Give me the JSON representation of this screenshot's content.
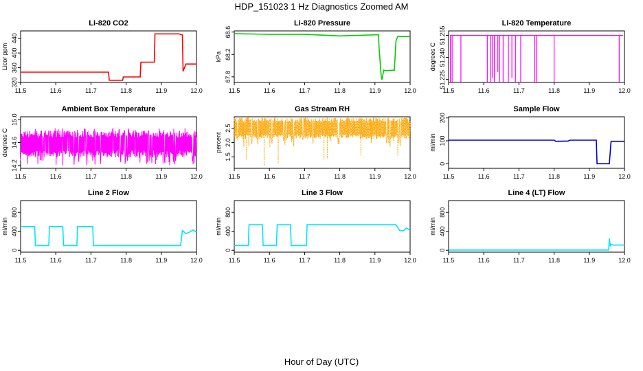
{
  "figure": {
    "title": "HDP_151023  1 Hz Diagnostics Zoomed AM",
    "xlabel": "Hour of Day (UTC)"
  },
  "chart_data": [
    {
      "id": "co2",
      "type": "line",
      "title": "Li-820 CO2",
      "ylabel": "Licor ppm",
      "color": "#ff0000",
      "xlim": [
        11.5,
        12.0
      ],
      "xticks": [
        "11.5",
        "11.6",
        "11.7",
        "11.8",
        "11.9",
        "12.0"
      ],
      "ylim": [
        320,
        460
      ],
      "yticks": [
        320,
        360,
        400,
        440
      ],
      "x": [
        11.5,
        11.7,
        11.75,
        11.752,
        11.79,
        11.792,
        11.84,
        11.842,
        11.88,
        11.882,
        11.95,
        11.96,
        11.962,
        11.97,
        12.0
      ],
      "y": [
        348,
        348,
        348,
        326,
        326,
        335,
        335,
        375,
        375,
        452,
        452,
        449,
        350,
        370,
        370
      ]
    },
    {
      "id": "pressure",
      "type": "line",
      "title": "Li-820 Pressure",
      "ylabel": "kPa",
      "color": "#00cc00",
      "xlim": [
        11.5,
        12.0
      ],
      "xticks": [
        "11.5",
        "11.6",
        "11.7",
        "11.8",
        "11.9",
        "12.0"
      ],
      "ylim": [
        67.7,
        68.62
      ],
      "yticks": [
        "67.8",
        "68.2",
        "68.6"
      ],
      "x": [
        11.5,
        11.6,
        11.7,
        11.8,
        11.85,
        11.9,
        11.91,
        11.912,
        11.918,
        11.92,
        11.925,
        11.93,
        11.955,
        11.96,
        11.965,
        12.0
      ],
      "y": [
        68.57,
        68.56,
        68.56,
        68.53,
        68.54,
        68.55,
        68.55,
        68.3,
        67.8,
        67.75,
        67.92,
        67.91,
        67.92,
        68.45,
        68.52,
        68.52
      ]
    },
    {
      "id": "li820_temp",
      "type": "line",
      "title": "Li-820 Temperature",
      "ylabel": "degrees C",
      "color": "#ff00ff",
      "xlim": [
        11.5,
        12.0
      ],
      "xticks": [
        "11.5",
        "11.6",
        "11.7",
        "11.8",
        "11.9",
        "12.0"
      ],
      "ylim": [
        51.223,
        51.258
      ],
      "yticks": [
        "51.225",
        "51.240",
        "51.255"
      ],
      "baseline": 51.255,
      "drop_x": [
        11.505,
        11.51,
        11.535,
        11.61,
        11.62,
        11.625,
        11.63,
        11.64,
        11.645,
        11.655,
        11.67,
        11.68,
        11.69,
        11.705,
        11.745,
        11.75,
        11.8,
        11.985
      ],
      "drop_min": [
        51.223,
        51.223,
        51.223,
        51.223,
        51.223,
        51.226,
        51.223,
        51.23,
        51.223,
        51.223,
        51.223,
        51.226,
        51.223,
        51.223,
        51.223,
        51.223,
        51.223,
        51.223
      ]
    },
    {
      "id": "ambient_temp",
      "type": "line",
      "title": "Ambient Box Temperature",
      "ylabel": "degrees C",
      "color": "#ff00ff",
      "xlim": [
        11.5,
        12.0
      ],
      "xticks": [
        "11.5",
        "11.6",
        "11.7",
        "11.8",
        "11.9",
        "12.0"
      ],
      "ylim": [
        14.15,
        15.05
      ],
      "yticks": [
        "14.2",
        "14.6",
        "15.0"
      ],
      "band_low": 14.4,
      "band_high": 14.75,
      "spike_min": 14.2,
      "spike_max": 14.85
    },
    {
      "id": "gas_rh",
      "type": "line",
      "title": "Gas Stream RH",
      "ylabel": "percent",
      "color": "#ffa500",
      "xlim": [
        11.5,
        12.0
      ],
      "xticks": [
        "11.5",
        "11.6",
        "11.7",
        "11.8",
        "11.9",
        "12.0"
      ],
      "ylim": [
        1.1,
        2.9
      ],
      "yticks": [
        "1.5",
        "2.0",
        "2.5"
      ],
      "band_low": 2.2,
      "band_high": 2.8,
      "dips_x": [
        11.535,
        11.585,
        11.625,
        11.755,
        11.765,
        11.86,
        11.965
      ],
      "dips_y": [
        1.4,
        1.2,
        1.25,
        1.4,
        1.45,
        1.55,
        1.55
      ]
    },
    {
      "id": "sample_flow",
      "type": "line",
      "title": "Sample Flow",
      "ylabel": "ml/min",
      "color": "#0000cc",
      "xlim": [
        11.5,
        12.0
      ],
      "xticks": [
        "11.5",
        "11.6",
        "11.7",
        "11.8",
        "11.9",
        "12.0"
      ],
      "ylim": [
        -20,
        205
      ],
      "yticks": [
        0,
        100,
        200
      ],
      "x": [
        11.5,
        11.8,
        11.805,
        11.84,
        11.845,
        11.92,
        11.922,
        11.955,
        11.957,
        11.962,
        12.0
      ],
      "y": [
        103,
        103,
        98,
        99,
        103,
        103,
        0,
        0,
        0,
        98,
        98
      ]
    },
    {
      "id": "line2_flow",
      "type": "line",
      "title": "Line 2 Flow",
      "ylabel": "ml/min",
      "color": "#00e5ff",
      "xlim": [
        11.5,
        12.0
      ],
      "xticks": [
        "11.5",
        "11.6",
        "11.7",
        "11.8",
        "11.9",
        "12.0"
      ],
      "ylim": [
        -40,
        1050
      ],
      "yticks": [
        0,
        400,
        800
      ],
      "x": [
        11.5,
        11.54,
        11.542,
        11.58,
        11.582,
        11.62,
        11.622,
        11.66,
        11.662,
        11.705,
        11.707,
        11.955,
        11.96,
        11.97,
        11.98,
        11.99,
        12.0
      ],
      "y": [
        500,
        500,
        100,
        100,
        500,
        500,
        100,
        100,
        500,
        500,
        100,
        100,
        420,
        350,
        380,
        430,
        380
      ]
    },
    {
      "id": "line3_flow",
      "type": "line",
      "title": "Line 3 Flow",
      "ylabel": "ml/min",
      "color": "#00e5ff",
      "xlim": [
        11.5,
        12.0
      ],
      "xticks": [
        "11.5",
        "11.6",
        "11.7",
        "11.8",
        "11.9",
        "12.0"
      ],
      "ylim": [
        -40,
        1050
      ],
      "yticks": [
        0,
        400,
        800
      ],
      "x": [
        11.5,
        11.54,
        11.542,
        11.58,
        11.582,
        11.62,
        11.622,
        11.66,
        11.662,
        11.705,
        11.707,
        11.96,
        11.97,
        11.98,
        11.99,
        12.0
      ],
      "y": [
        100,
        100,
        540,
        540,
        100,
        100,
        540,
        540,
        100,
        100,
        540,
        540,
        420,
        410,
        470,
        420
      ]
    },
    {
      "id": "line4_flow",
      "type": "line",
      "title": "Line 4 (LT) Flow",
      "ylabel": "ml/min",
      "color": "#00e5ff",
      "xlim": [
        11.5,
        12.0
      ],
      "xticks": [
        "11.5",
        "11.6",
        "11.7",
        "11.8",
        "11.9",
        "12.0"
      ],
      "ylim": [
        -40,
        1050
      ],
      "yticks": [
        0,
        400,
        800
      ],
      "x": [
        11.5,
        11.955,
        11.957,
        11.96,
        11.962,
        11.97,
        12.0
      ],
      "y": [
        5,
        5,
        250,
        80,
        120,
        110,
        110
      ]
    }
  ]
}
